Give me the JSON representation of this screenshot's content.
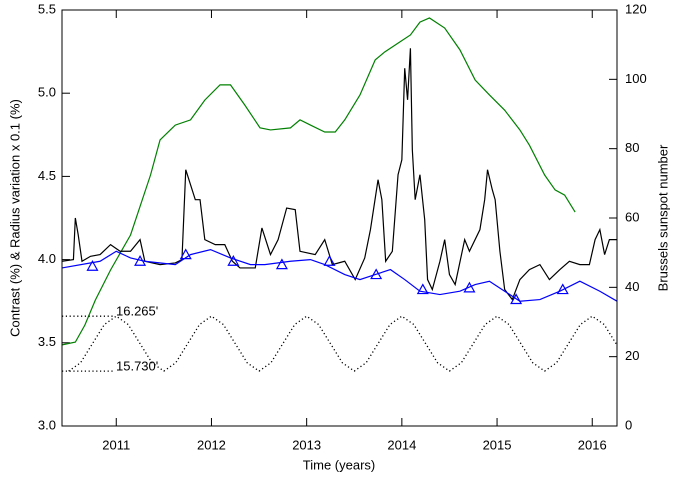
{
  "chart_data": {
    "type": "line",
    "xlabel": "Time (years)",
    "ylabel": "Contrast (%) & Radius variation x 0.1 (%)",
    "y2label": "Brussels sunspot number",
    "xlim": [
      2010.43,
      2016.26
    ],
    "ylim": [
      3.0,
      5.5
    ],
    "y2lim": [
      0,
      120
    ],
    "xticks": [
      2011,
      2012,
      2013,
      2014,
      2015,
      2016
    ],
    "yticks": [
      {
        "value": 3.0,
        "label": "3.0"
      },
      3.5,
      {
        "value": 4.0,
        "label": "4.0"
      },
      4.5,
      {
        "value": 5.0,
        "label": "5.0"
      },
      5.5
    ],
    "y2ticks": [
      0,
      20,
      40,
      60,
      80,
      100,
      120
    ],
    "series": [
      {
        "color": "#008000",
        "axis": "y2",
        "style": "solid",
        "x": [
          2010.43,
          2010.57,
          2010.67,
          2010.78,
          2010.94,
          2011.15,
          2011.36,
          2011.46,
          2011.62,
          2011.78,
          2011.93,
          2012.09,
          2012.2,
          2012.35,
          2012.51,
          2012.62,
          2012.83,
          2012.93,
          2013.04,
          2013.19,
          2013.3,
          2013.4,
          2013.56,
          2013.72,
          2013.82,
          2013.98,
          2014.09,
          2014.19,
          2014.29,
          2014.45,
          2014.61,
          2014.77,
          2014.92,
          2015.08,
          2015.24,
          2015.34,
          2015.5,
          2015.61,
          2015.71,
          2015.82
        ],
        "values": [
          23.4,
          24.2,
          29.1,
          36.3,
          45.0,
          55.1,
          72.4,
          82.5,
          86.8,
          88.3,
          94.0,
          98.4,
          98.4,
          92.6,
          86.0,
          85.4,
          86.0,
          88.3,
          86.8,
          84.8,
          84.8,
          88.3,
          95.5,
          105.6,
          107.9,
          110.8,
          112.8,
          116.5,
          117.7,
          114.8,
          108.5,
          99.8,
          95.5,
          91.1,
          85.4,
          81.0,
          72.4,
          68.1,
          66.6,
          61.7
        ]
      },
      {
        "color": "#000000",
        "style": "solid",
        "x": [
          2010.43,
          2010.55,
          2010.57,
          2010.6,
          2010.64,
          2010.73,
          2010.83,
          2010.94,
          2011.04,
          2011.15,
          2011.25,
          2011.3,
          2011.46,
          2011.62,
          2011.69,
          2011.73,
          2011.78,
          2011.83,
          2011.88,
          2011.93,
          2012.04,
          2012.14,
          2012.22,
          2012.3,
          2012.46,
          2012.53,
          2012.62,
          2012.7,
          2012.79,
          2012.88,
          2012.93,
          2013.09,
          2013.19,
          2013.27,
          2013.4,
          2013.51,
          2013.61,
          2013.67,
          2013.75,
          2013.79,
          2013.83,
          2013.9,
          2013.96,
          2014.0,
          2014.03,
          2014.06,
          2014.09,
          2014.11,
          2014.14,
          2014.19,
          2014.24,
          2014.27,
          2014.32,
          2014.4,
          2014.45,
          2014.5,
          2014.56,
          2014.66,
          2014.71,
          2014.82,
          2014.87,
          2014.9,
          2014.95,
          2014.98,
          2015.03,
          2015.08,
          2015.16,
          2015.24,
          2015.34,
          2015.45,
          2015.55,
          2015.66,
          2015.76,
          2015.87,
          2015.97,
          2016.03,
          2016.08,
          2016.13,
          2016.18,
          2016.26
        ],
        "values": [
          3.99,
          4.0,
          4.25,
          4.15,
          3.99,
          4.02,
          4.03,
          4.09,
          4.05,
          4.05,
          4.12,
          3.99,
          3.97,
          3.98,
          4.0,
          4.54,
          4.45,
          4.36,
          4.36,
          4.12,
          4.09,
          4.09,
          3.99,
          3.95,
          3.95,
          4.19,
          4.03,
          4.12,
          4.31,
          4.3,
          4.05,
          4.03,
          4.12,
          3.97,
          3.99,
          3.88,
          4.01,
          4.18,
          4.48,
          4.36,
          3.99,
          4.05,
          4.51,
          4.6,
          5.15,
          4.96,
          5.27,
          4.66,
          4.36,
          4.51,
          4.24,
          3.88,
          3.82,
          3.99,
          4.12,
          3.91,
          3.85,
          4.12,
          4.05,
          4.18,
          4.36,
          4.54,
          4.42,
          4.36,
          4.05,
          3.82,
          3.76,
          3.88,
          3.94,
          3.97,
          3.88,
          3.94,
          3.99,
          3.97,
          3.97,
          4.12,
          4.18,
          4.03,
          4.12,
          4.12
        ]
      },
      {
        "color": "#0000ff",
        "style": "solid",
        "x": [
          2010.43,
          2010.83,
          2011.0,
          2011.15,
          2011.3,
          2011.62,
          2011.78,
          2011.99,
          2012.2,
          2012.41,
          2012.56,
          2012.83,
          2013.04,
          2013.19,
          2013.4,
          2013.56,
          2013.72,
          2013.88,
          2014.03,
          2014.19,
          2014.4,
          2014.61,
          2014.77,
          2014.92,
          2015.08,
          2015.24,
          2015.45,
          2015.66,
          2015.87,
          2016.08,
          2016.26
        ],
        "values": [
          3.95,
          3.99,
          4.05,
          4.01,
          3.99,
          3.97,
          4.03,
          4.06,
          4.01,
          3.97,
          3.97,
          3.99,
          4.0,
          3.97,
          3.91,
          3.88,
          3.91,
          3.94,
          3.88,
          3.81,
          3.79,
          3.81,
          3.85,
          3.87,
          3.81,
          3.75,
          3.76,
          3.81,
          3.87,
          3.81,
          3.75
        ]
      },
      {
        "color": "#0000ff",
        "style": "none",
        "marker": "triangle",
        "x": [
          2010.75,
          2011.25,
          2011.73,
          2012.23,
          2012.74,
          2013.24,
          2013.73,
          2014.22,
          2014.71,
          2015.2,
          2015.69
        ],
        "values": [
          3.96,
          3.99,
          4.03,
          3.99,
          3.97,
          3.99,
          3.91,
          3.82,
          3.83,
          3.76,
          3.82
        ]
      },
      {
        "color": "#000000",
        "style": "dotted",
        "x": [
          2010.5,
          2010.625,
          2010.75,
          2010.875,
          2011.0,
          2011.125,
          2011.25,
          2011.375,
          2011.5,
          2011.625,
          2011.75,
          2011.875,
          2012.0,
          2012.125,
          2012.25,
          2012.375,
          2012.5,
          2012.625,
          2012.75,
          2012.875,
          2013.0,
          2013.125,
          2013.25,
          2013.375,
          2013.5,
          2013.625,
          2013.75,
          2013.875,
          2014.0,
          2014.125,
          2014.25,
          2014.375,
          2014.5,
          2014.625,
          2014.75,
          2014.875,
          2015.0,
          2015.125,
          2015.25,
          2015.375,
          2015.5,
          2015.625,
          2015.75,
          2015.875,
          2016.0,
          2016.125,
          2016.25
        ],
        "values": [
          3.33,
          3.38,
          3.495,
          3.61,
          3.66,
          3.61,
          3.495,
          3.38,
          3.33,
          3.38,
          3.495,
          3.61,
          3.66,
          3.61,
          3.495,
          3.38,
          3.33,
          3.38,
          3.495,
          3.61,
          3.66,
          3.61,
          3.495,
          3.38,
          3.33,
          3.38,
          3.495,
          3.61,
          3.66,
          3.61,
          3.495,
          3.38,
          3.33,
          3.38,
          3.495,
          3.61,
          3.66,
          3.61,
          3.495,
          3.38,
          3.33,
          3.38,
          3.495,
          3.61,
          3.66,
          3.61,
          3.495
        ]
      }
    ],
    "annotations": [
      {
        "text": "16.265'",
        "y": 3.66
      },
      {
        "text": "15.730'",
        "y": 3.33
      }
    ]
  }
}
